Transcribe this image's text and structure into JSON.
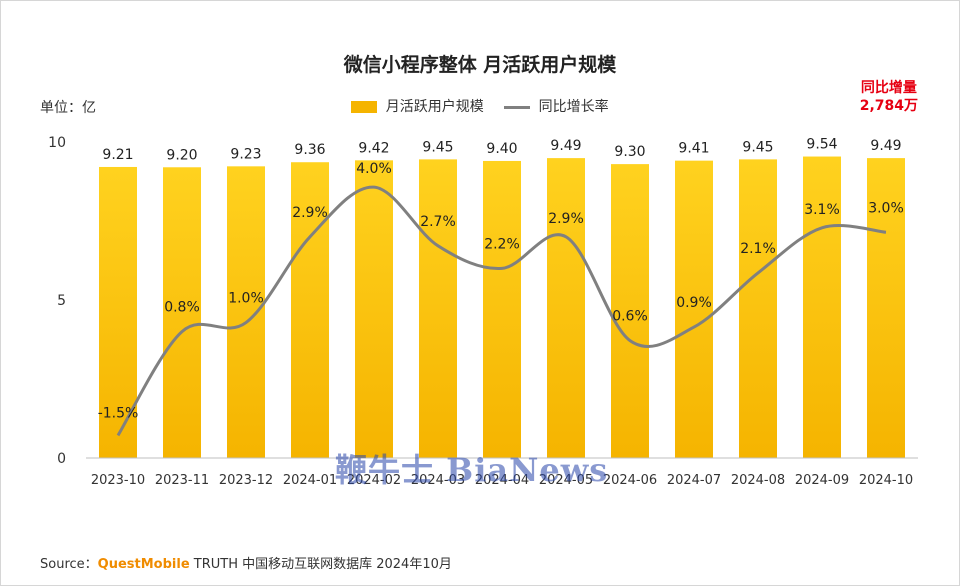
{
  "title": "微信小程序整体 月活跃用户规模",
  "unit_label": "单位：亿",
  "legend": {
    "bar_label": "月活跃用户规模",
    "line_label": "同比增长率"
  },
  "yoy_callout": {
    "line1": "同比增量",
    "line2": "2,784万"
  },
  "source": {
    "prefix": "Source：",
    "brand": "QuestMobile",
    "rest": " TRUTH 中国移动互联网数据库 2024年10月"
  },
  "watermark": "鞭牛士 BiaNews",
  "colors": {
    "bar": "#f5b400",
    "line": "#808080",
    "callout": "#e60012",
    "brand": "#f08c00"
  },
  "chart_data": {
    "type": "bar",
    "categories": [
      "2023-10",
      "2023-11",
      "2023-12",
      "2024-01",
      "2024-02",
      "2024-03",
      "2024-04",
      "2024-05",
      "2024-06",
      "2024-07",
      "2024-08",
      "2024-09",
      "2024-10"
    ],
    "series": [
      {
        "name": "月活跃用户规模",
        "type": "bar",
        "axis": "left",
        "values": [
          9.21,
          9.2,
          9.23,
          9.36,
          9.42,
          9.45,
          9.4,
          9.49,
          9.3,
          9.41,
          9.45,
          9.54,
          9.49
        ],
        "labels": [
          "9.21",
          "9.20",
          "9.23",
          "9.36",
          "9.42",
          "9.45",
          "9.40",
          "9.49",
          "9.30",
          "9.41",
          "9.45",
          "9.54",
          "9.49"
        ]
      },
      {
        "name": "同比增长率",
        "type": "line",
        "axis": "secondary",
        "values": [
          -1.5,
          0.8,
          1.0,
          2.9,
          4.0,
          2.7,
          2.2,
          2.9,
          0.6,
          0.9,
          2.1,
          3.1,
          3.0
        ],
        "labels": [
          "-1.5%",
          "0.8%",
          "1.0%",
          "2.9%",
          "4.0%",
          "2.7%",
          "2.2%",
          "2.9%",
          "0.6%",
          "0.9%",
          "2.1%",
          "3.1%",
          "3.0%"
        ]
      }
    ],
    "ylim": [
      0,
      10
    ],
    "yticks": [
      "0",
      "5",
      "10"
    ],
    "secondary_ylim": [
      -2,
      5
    ],
    "grid": false,
    "legend_position": "top"
  }
}
